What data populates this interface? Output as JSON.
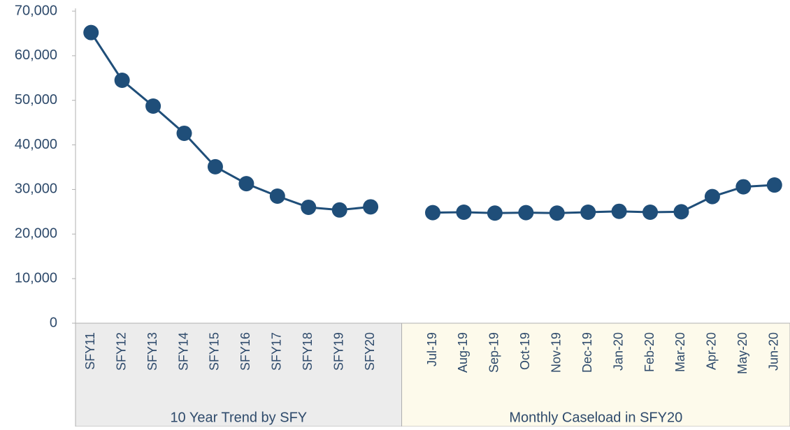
{
  "chart_data": {
    "type": "line",
    "categories": [
      "SFY11",
      "SFY12",
      "SFY13",
      "SFY14",
      "SFY15",
      "SFY16",
      "SFY17",
      "SFY18",
      "SFY19",
      "SFY20",
      null,
      "Jul-19",
      "Aug-19",
      "Sep-19",
      "Oct-19",
      "Nov-19",
      "Dec-19",
      "Jan-20",
      "Feb-20",
      "Mar-20",
      "Apr-20",
      "May-20",
      "Jun-20"
    ],
    "values": [
      65200,
      54500,
      48700,
      42600,
      35100,
      31300,
      28500,
      26000,
      25400,
      26100,
      null,
      24800,
      24900,
      24700,
      24800,
      24700,
      24900,
      25100,
      24900,
      25000,
      28400,
      30600,
      31000
    ],
    "color": "#1f4e79",
    "groups": [
      "10 Year Trend by SFY",
      "Monthly Caseload in SFY20"
    ],
    "ylim": [
      0,
      70000
    ],
    "yticks": [
      0,
      {
        "value": 10000,
        "label": "10,000"
      },
      {
        "value": 20000,
        "label": "20,000"
      },
      {
        "value": 30000,
        "label": "30,000"
      },
      {
        "value": 40000,
        "label": "40,000"
      },
      {
        "value": 50000,
        "label": "50,000"
      },
      {
        "value": 60000,
        "label": "60,000"
      },
      {
        "value": 70000,
        "label": "70,000"
      }
    ],
    "grid": false
  }
}
